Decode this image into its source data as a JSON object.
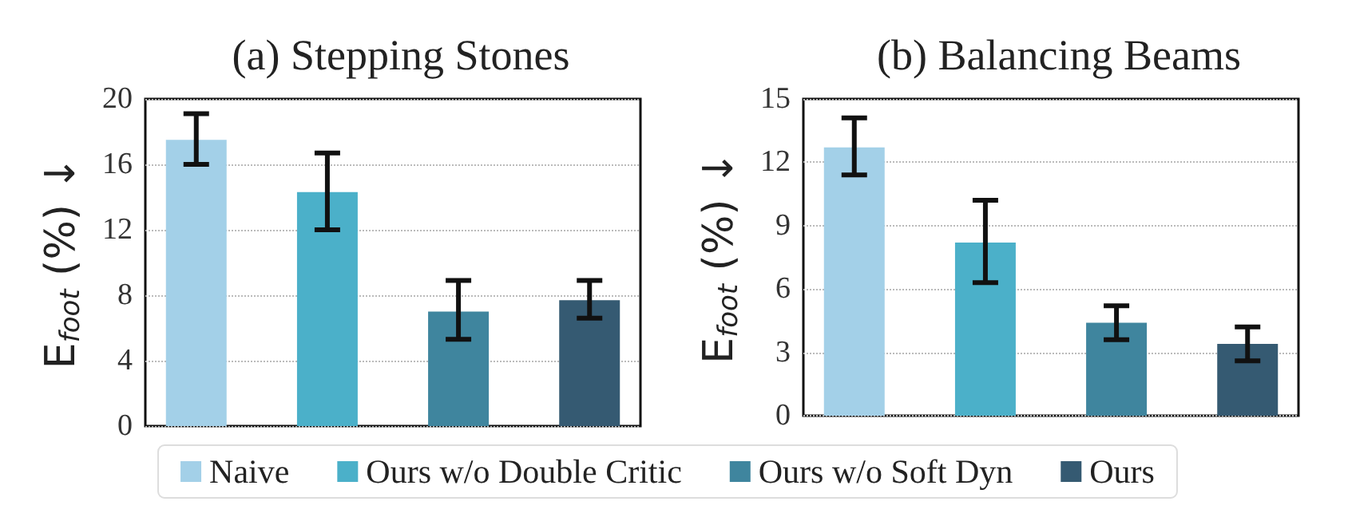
{
  "chart_data": [
    {
      "type": "bar",
      "title": "(a) Stepping Stones",
      "ylabel": "E$_{foot}$ (%) ↓",
      "categories": [
        null
      ],
      "ylim": [
        0,
        20
      ],
      "yticks": [
        0,
        4,
        8,
        12,
        16,
        20
      ],
      "grid": "y",
      "legend": "bottom",
      "series": [
        {
          "name": "Naive",
          "color": "#a3d0e8",
          "values": [
            17.5
          ],
          "errors": [
            [
              16.0,
              19.1
            ]
          ]
        },
        {
          "name": "Ours w/o Double Critic",
          "color": "#4bb0c9",
          "values": [
            14.3
          ],
          "errors": [
            [
              12.0,
              16.7
            ]
          ]
        },
        {
          "name": "Ours w/o Soft Dyn",
          "color": "#3f859e",
          "values": [
            7.0
          ],
          "errors": [
            [
              5.3,
              8.9
            ]
          ]
        },
        {
          "name": "Ours",
          "color": "#355a72",
          "values": [
            7.7
          ],
          "errors": [
            [
              6.6,
              8.9
            ]
          ]
        }
      ]
    },
    {
      "type": "bar",
      "title": "(b) Balancing Beams",
      "ylabel": "E$_{foot}$ (%) ↓",
      "categories": [
        null
      ],
      "ylim": [
        0,
        15
      ],
      "yticks": [
        0,
        3,
        6,
        9,
        12,
        15
      ],
      "grid": "y",
      "series": [
        {
          "color": "#a3d0e8",
          "values": [
            12.7
          ],
          "errors": [
            [
              11.4,
              14.1
            ]
          ]
        },
        {
          "color": "#4bb0c9",
          "values": [
            8.2
          ],
          "errors": [
            [
              6.3,
              10.2
            ]
          ]
        },
        {
          "color": "#3f859e",
          "values": [
            4.4
          ],
          "errors": [
            [
              3.6,
              5.2
            ]
          ]
        },
        {
          "color": "#355a72",
          "values": [
            3.4
          ],
          "errors": [
            [
              2.6,
              4.2
            ]
          ]
        }
      ]
    }
  ]
}
